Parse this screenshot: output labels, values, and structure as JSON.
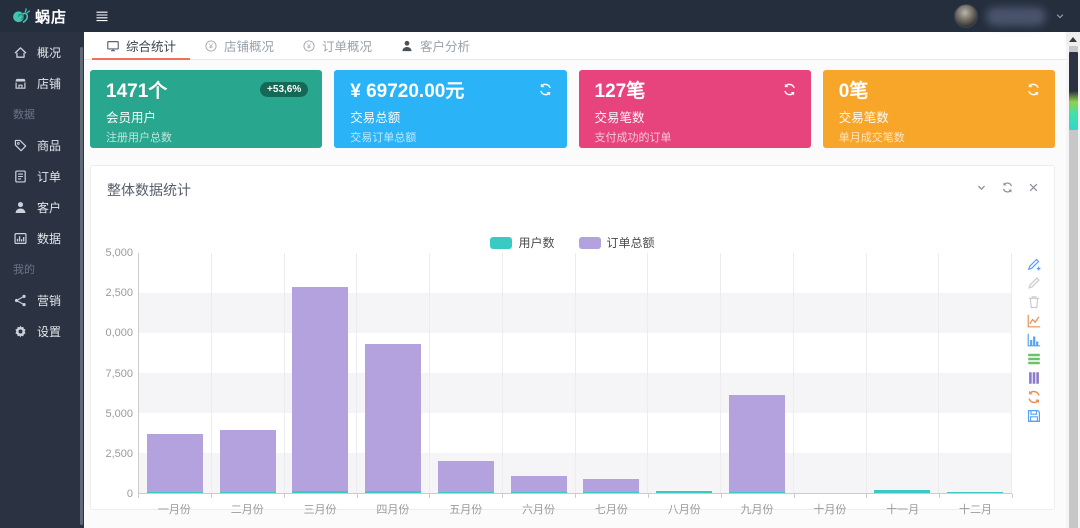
{
  "header": {
    "logo_text": "蜗店"
  },
  "sidebar": {
    "items": [
      {
        "type": "item",
        "key": "overview",
        "icon": "home",
        "label": "概况"
      },
      {
        "type": "item",
        "key": "shop",
        "icon": "store",
        "label": "店铺"
      },
      {
        "type": "section",
        "key": "section-data",
        "label": "数据"
      },
      {
        "type": "item",
        "key": "goods",
        "icon": "tag",
        "label": "商品"
      },
      {
        "type": "item",
        "key": "orders",
        "icon": "order",
        "label": "订单"
      },
      {
        "type": "item",
        "key": "customers",
        "icon": "person",
        "label": "客户"
      },
      {
        "type": "item",
        "key": "data",
        "icon": "chart",
        "label": "数据"
      },
      {
        "type": "section",
        "key": "section-mine",
        "label": "我的"
      },
      {
        "type": "item",
        "key": "marketing",
        "icon": "marketing",
        "label": "营销"
      },
      {
        "type": "item",
        "key": "settings",
        "icon": "settings",
        "label": "设置"
      }
    ]
  },
  "tabs": {
    "active_underline_color": "#f0705c",
    "items": [
      {
        "key": "summary-stats",
        "icon": "monitor",
        "label": "综合统计",
        "active": true
      },
      {
        "key": "shop-overview",
        "icon": "yen-circle",
        "label": "店铺概况",
        "active": false
      },
      {
        "key": "order-overview",
        "icon": "yen-circle",
        "label": "订单概况",
        "active": false
      },
      {
        "key": "customer-analysis",
        "icon": "person",
        "label": "客户分析",
        "active": false
      }
    ]
  },
  "stat_cards": [
    {
      "key": "member-users",
      "color": "#29a78e",
      "value": "1471个",
      "badge": "+53,6%",
      "title": "会员用户",
      "subtitle": "注册用户总数"
    },
    {
      "key": "trade-amount",
      "color": "#2bb3f7",
      "value": "¥ 69720.00元",
      "action_icon": "refresh",
      "title": "交易总额",
      "subtitle": "交易订单总额"
    },
    {
      "key": "trade-count",
      "color": "#e7437c",
      "value": "127笔",
      "action_icon": "refresh",
      "title": "交易笔数",
      "subtitle": "支付成功的订单"
    },
    {
      "key": "monthly-trade-count",
      "color": "#f8a62a",
      "value": "0笔",
      "action_icon": "refresh",
      "title": "交易笔数",
      "subtitle": "单月成交笔数"
    }
  ],
  "panel": {
    "title": "整体数据统计",
    "controls": [
      {
        "key": "collapse",
        "icon": "chevron-down"
      },
      {
        "key": "refresh",
        "icon": "refresh"
      },
      {
        "key": "close",
        "icon": "close"
      }
    ],
    "controls_color": "#8a909c"
  },
  "chart_data": {
    "type": "bar",
    "title": "整体数据统计",
    "categories": [
      "一月份",
      "二月份",
      "三月份",
      "四月份",
      "五月份",
      "六月份",
      "七月份",
      "八月份",
      "九月份",
      "十月份",
      "十一月",
      "十二月"
    ],
    "series": [
      {
        "name": "用户数",
        "color": "#3bc9c3",
        "values": [
          60,
          80,
          150,
          100,
          40,
          50,
          40,
          140,
          90,
          0,
          210,
          60
        ]
      },
      {
        "name": "订单总额",
        "color": "#b3a2de",
        "values": [
          3700,
          3900,
          12800,
          9300,
          2000,
          1050,
          900,
          0,
          6100,
          0,
          130,
          0
        ]
      }
    ],
    "ylim": [
      0,
      15000
    ],
    "y_tick_interval": 2500,
    "y_tick_labels_shown": [
      "0",
      "2,500",
      "5,000",
      "7,500",
      "0,000",
      "2,500",
      "5,000"
    ],
    "legend": {
      "position": "top-center",
      "entries": [
        "用户数",
        "订单总额"
      ]
    },
    "grid": {
      "split_area": true,
      "band_color": "#f5f5f7"
    },
    "xlabel": "",
    "ylabel": ""
  },
  "chart_toolbox": [
    {
      "key": "annotate-add",
      "icon": "pencil-plus",
      "color": "#57a3f3"
    },
    {
      "key": "annotate-edit",
      "icon": "pencil",
      "color": "#c7cad1"
    },
    {
      "key": "annotate-delete",
      "icon": "trash",
      "color": "#c7cad1"
    },
    {
      "key": "switch-line",
      "icon": "line-chart",
      "color": "#e98f58"
    },
    {
      "key": "switch-bar",
      "icon": "bar-chart",
      "color": "#57a3f3"
    },
    {
      "key": "stack",
      "icon": "stack",
      "color": "#6cc16a"
    },
    {
      "key": "tiled",
      "icon": "tiled",
      "color": "#8d7ac9"
    },
    {
      "key": "restore",
      "icon": "restore",
      "color": "#e98f58"
    },
    {
      "key": "save-image",
      "icon": "save",
      "color": "#57a3f3"
    }
  ]
}
